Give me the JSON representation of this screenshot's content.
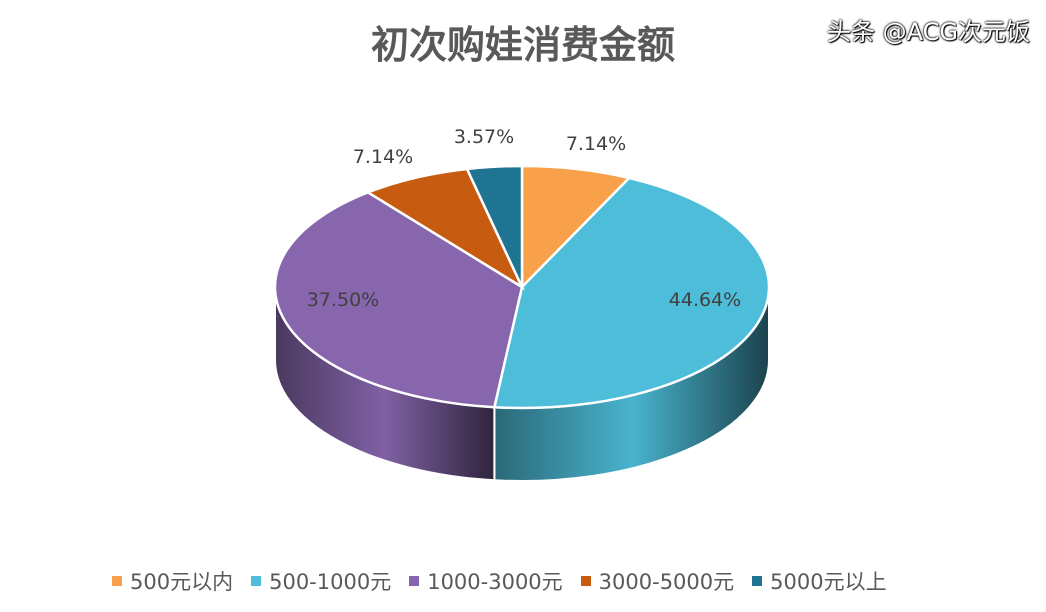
{
  "chart_data": {
    "type": "pie",
    "style": "3d",
    "title": "初次购娃消费金额",
    "categories": [
      "500元以内",
      "500-1000元",
      "1000-3000元",
      "3000-5000元",
      "5000元以上"
    ],
    "values": [
      7.14,
      44.64,
      37.5,
      7.14,
      3.57
    ],
    "data_labels": [
      "7.14%",
      "44.64%",
      "37.50%",
      "7.14%",
      "3.57%"
    ],
    "colors": [
      "#f9a04b",
      "#4dbdd9",
      "#8766ad",
      "#c75b10",
      "#1f7591"
    ],
    "legend_position": "bottom"
  },
  "watermark": "头条 @ACG次元饭"
}
